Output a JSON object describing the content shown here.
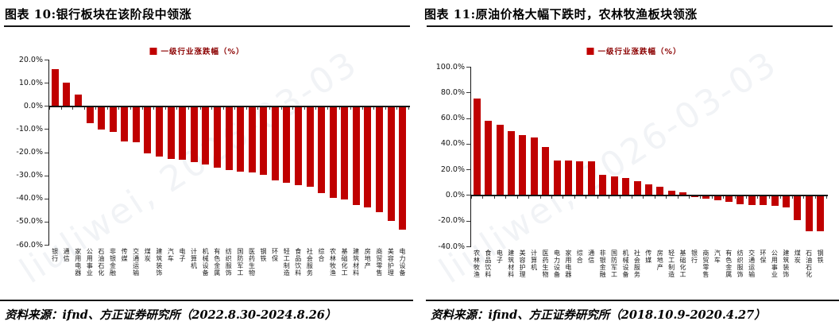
{
  "panels": [
    {
      "title": "图表 10:银行板块在该阶段中领涨",
      "source": "资料来源：ifnd、方正证券研究所（2022.8.30-2024.8.26）",
      "watermark": "liuliwei, 2026-03-03"
    },
    {
      "title": "图表 11:原油价格大幅下跌时，农林牧渔板块领涨",
      "source": "资料来源：ifind、方正证券研究所（2018.10.9-2020.4.27）",
      "watermark": "liuliwei, 2026-03-03"
    }
  ],
  "chart_data": [
    {
      "type": "bar",
      "title": "图表 10:银行板块在该阶段中领涨",
      "legend": "一级行业涨跌幅（%）",
      "legend_position": "top",
      "bar_color": "#c00000",
      "legend_text_color": "#8b0000",
      "grid": false,
      "xlabel": "",
      "ylabel": "",
      "ylim": [
        -60,
        20
      ],
      "yticks": [
        20,
        10,
        0,
        -10,
        -20,
        -30,
        -40,
        -50,
        -60
      ],
      "categories": [
        "银行",
        "通信",
        "家用电器",
        "公用事业",
        "石油石化",
        "非银金融",
        "传媒",
        "交通运输",
        "煤炭",
        "建筑装饰",
        "汽车",
        "电子",
        "计算机",
        "机械设备",
        "有色金属",
        "纺织服饰",
        "国防军工",
        "医药生物",
        "钢铁",
        "环保",
        "轻工制造",
        "食品饮料",
        "社会服务",
        "综合",
        "农林牧渔",
        "基础化工",
        "建筑材料",
        "房地产",
        "商贸零售",
        "美容护理",
        "电力设备"
      ],
      "values": [
        16,
        10,
        5,
        -7,
        -10,
        -11,
        -15,
        -15.5,
        -20,
        -21.5,
        -22.5,
        -23,
        -24,
        -25,
        -26.5,
        -27.5,
        -28,
        -28.5,
        -29.5,
        -32,
        -33,
        -34,
        -34.5,
        -37.5,
        -39.5,
        -40,
        -42.5,
        -43.5,
        -45.5,
        -49.5,
        -53
      ]
    },
    {
      "type": "bar",
      "title": "图表 11:原油价格大幅下跌时，农林牧渔板块领涨",
      "legend": "一级行业涨跌幅（%）",
      "legend_position": "top",
      "bar_color": "#c00000",
      "legend_text_color": "#8b0000",
      "grid": false,
      "xlabel": "",
      "ylabel": "",
      "ylim": [
        -40,
        100
      ],
      "yticks": [
        100,
        80,
        60,
        40,
        20,
        0,
        -20,
        -40
      ],
      "categories": [
        "农林牧渔",
        "食品饮料",
        "电子",
        "建筑材料",
        "美容护理",
        "计算机",
        "医药生物",
        "电力设备",
        "家用电器",
        "综合",
        "通信",
        "非银金融",
        "国防军工",
        "机械设备",
        "社会服务",
        "传媒",
        "房地产",
        "轻工制造",
        "基础化工",
        "银行",
        "商贸零售",
        "汽车",
        "有色金属",
        "纺织服饰",
        "交通运输",
        "环保",
        "公用事业",
        "建筑装饰",
        "煤炭",
        "石油石化",
        "钢铁"
      ],
      "values": [
        75,
        58,
        55,
        50,
        47,
        45,
        37.5,
        27,
        27,
        26,
        26,
        16,
        14.5,
        13.5,
        11,
        8.5,
        6.5,
        3.5,
        2,
        -1,
        -2,
        -3.5,
        -4.5,
        -6.5,
        -7,
        -7,
        -8,
        -9,
        -19,
        -27.5,
        -27.5
      ]
    }
  ]
}
